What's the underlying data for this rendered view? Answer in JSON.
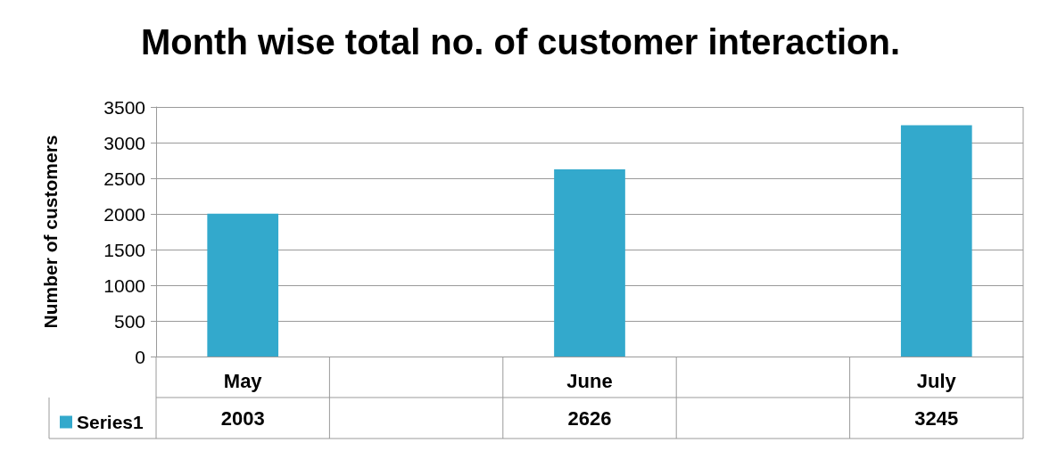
{
  "chart_data": {
    "type": "bar",
    "title": "Month wise total no. of customer interaction.",
    "ylabel": "Number of customers",
    "categories": [
      "May",
      null,
      "June",
      null,
      "July"
    ],
    "series": [
      {
        "name": "Series1",
        "color": "#33a9cc",
        "values": [
          2003,
          null,
          2626,
          null,
          3245
        ]
      }
    ],
    "ylim": [
      0,
      3500
    ],
    "yticks": [
      0,
      500,
      1000,
      1500,
      2000,
      2500,
      3000,
      3500
    ],
    "grid": "y",
    "legend": "bottom left",
    "data_labels": true
  }
}
